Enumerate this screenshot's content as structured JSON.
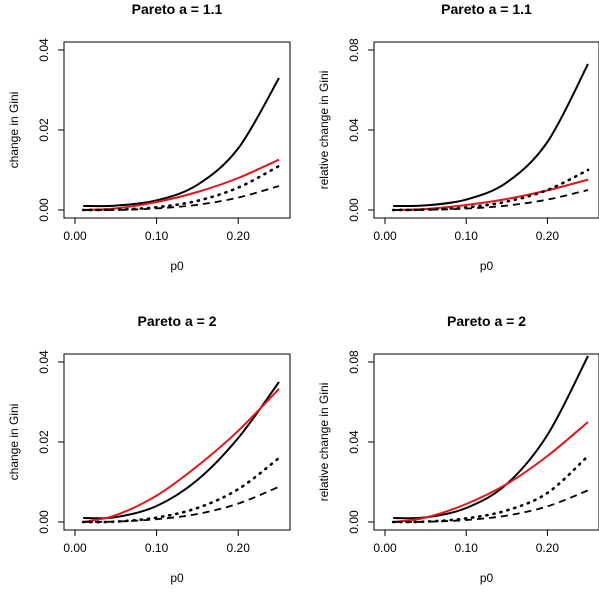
{
  "chart_data": [
    {
      "type": "line",
      "title": "Pareto  a =  1.1",
      "xlabel": "p0",
      "ylabel": "change in Gini",
      "xlim": [
        0,
        0.25
      ],
      "ylim": [
        0,
        0.04
      ],
      "xticks": [
        "0.00",
        "0.10",
        "0.20"
      ],
      "yticks": [
        "0.00",
        "0.02",
        "0.04"
      ],
      "grid": false,
      "series": [
        {
          "style": "solid",
          "color": "#000000",
          "x": [
            0.01,
            0.05,
            0.1,
            0.15,
            0.2,
            0.25
          ],
          "y": [
            0.001,
            0.0011,
            0.0024,
            0.0063,
            0.0154,
            0.033
          ]
        },
        {
          "style": "solid",
          "color": "#e8141b",
          "x": [
            0.01,
            0.05,
            0.1,
            0.15,
            0.2,
            0.25
          ],
          "y": [
            0.0,
            0.0004,
            0.002,
            0.0045,
            0.008,
            0.0126
          ]
        },
        {
          "style": "dotted",
          "color": "#000000",
          "x": [
            0.01,
            0.05,
            0.1,
            0.15,
            0.2,
            0.25
          ],
          "y": [
            0.0,
            0.0001,
            0.0007,
            0.0023,
            0.0056,
            0.011
          ]
        },
        {
          "style": "dashed",
          "color": "#000000",
          "x": [
            0.01,
            0.05,
            0.1,
            0.15,
            0.2,
            0.25
          ],
          "y": [
            0.0,
            0.0,
            0.0004,
            0.0013,
            0.0031,
            0.006
          ]
        }
      ]
    },
    {
      "type": "line",
      "title": "Pareto  a =  1.1",
      "xlabel": "p0",
      "ylabel": "relative change in Gini",
      "xlim": [
        0,
        0.25
      ],
      "ylim": [
        0,
        0.08
      ],
      "xticks": [
        "0.00",
        "0.10",
        "0.20"
      ],
      "yticks": [
        "0.00",
        "0.04",
        "0.08"
      ],
      "grid": false,
      "series": [
        {
          "style": "solid",
          "color": "#000000",
          "x": [
            0.01,
            0.05,
            0.1,
            0.15,
            0.2,
            0.25
          ],
          "y": [
            0.002,
            0.0023,
            0.0052,
            0.0138,
            0.034,
            0.073
          ]
        },
        {
          "style": "solid",
          "color": "#e8141b",
          "x": [
            0.01,
            0.05,
            0.1,
            0.15,
            0.2,
            0.25
          ],
          "y": [
            0.0,
            0.0005,
            0.0025,
            0.0055,
            0.0098,
            0.0152
          ]
        },
        {
          "style": "dotted",
          "color": "#000000",
          "x": [
            0.01,
            0.05,
            0.1,
            0.15,
            0.2,
            0.25
          ],
          "y": [
            0.0,
            0.0002,
            0.0013,
            0.0042,
            0.01,
            0.02
          ]
        },
        {
          "style": "dashed",
          "color": "#000000",
          "x": [
            0.01,
            0.05,
            0.1,
            0.15,
            0.2,
            0.25
          ],
          "y": [
            0.0,
            0.0001,
            0.0007,
            0.0022,
            0.0052,
            0.01
          ]
        }
      ]
    },
    {
      "type": "line",
      "title": "Pareto  a =  2",
      "xlabel": "p0",
      "ylabel": "change in Gini",
      "xlim": [
        0,
        0.25
      ],
      "ylim": [
        0,
        0.04
      ],
      "xticks": [
        "0.00",
        "0.10",
        "0.20"
      ],
      "yticks": [
        "0.00",
        "0.02",
        "0.04"
      ],
      "grid": false,
      "series": [
        {
          "style": "solid",
          "color": "#000000",
          "x": [
            0.01,
            0.05,
            0.1,
            0.15,
            0.2,
            0.25
          ],
          "y": [
            0.001,
            0.0012,
            0.004,
            0.0105,
            0.021,
            0.035
          ]
        },
        {
          "style": "solid",
          "color": "#e8141b",
          "x": [
            0.01,
            0.05,
            0.1,
            0.15,
            0.2,
            0.25
          ],
          "y": [
            0.0,
            0.0017,
            0.0066,
            0.014,
            0.0228,
            0.0333
          ]
        },
        {
          "style": "dotted",
          "color": "#000000",
          "x": [
            0.01,
            0.05,
            0.1,
            0.15,
            0.2,
            0.25
          ],
          "y": [
            0.0,
            0.0001,
            0.0011,
            0.0035,
            0.0082,
            0.016
          ]
        },
        {
          "style": "dashed",
          "color": "#000000",
          "x": [
            0.01,
            0.05,
            0.1,
            0.15,
            0.2,
            0.25
          ],
          "y": [
            0.0,
            0.0001,
            0.0007,
            0.002,
            0.0046,
            0.0088
          ]
        }
      ]
    },
    {
      "type": "line",
      "title": "Pareto  a =  2",
      "xlabel": "p0",
      "ylabel": "relative change in Gini",
      "xlim": [
        0,
        0.25
      ],
      "ylim": [
        0,
        0.08
      ],
      "xticks": [
        "0.00",
        "0.10",
        "0.20"
      ],
      "yticks": [
        "0.00",
        "0.04",
        "0.08"
      ],
      "grid": false,
      "series": [
        {
          "style": "solid",
          "color": "#000000",
          "x": [
            0.01,
            0.05,
            0.1,
            0.15,
            0.2,
            0.25
          ],
          "y": [
            0.002,
            0.0023,
            0.007,
            0.019,
            0.0435,
            0.083
          ]
        },
        {
          "style": "solid",
          "color": "#e8141b",
          "x": [
            0.01,
            0.05,
            0.1,
            0.15,
            0.2,
            0.25
          ],
          "y": [
            0.0,
            0.0022,
            0.009,
            0.019,
            0.033,
            0.05
          ]
        },
        {
          "style": "dotted",
          "color": "#000000",
          "x": [
            0.01,
            0.05,
            0.1,
            0.15,
            0.2,
            0.25
          ],
          "y": [
            0.0,
            0.0002,
            0.0018,
            0.0058,
            0.0145,
            0.033
          ]
        },
        {
          "style": "dashed",
          "color": "#000000",
          "x": [
            0.01,
            0.05,
            0.1,
            0.15,
            0.2,
            0.25
          ],
          "y": [
            0.0,
            0.0001,
            0.001,
            0.0032,
            0.0078,
            0.0158
          ]
        }
      ]
    }
  ]
}
